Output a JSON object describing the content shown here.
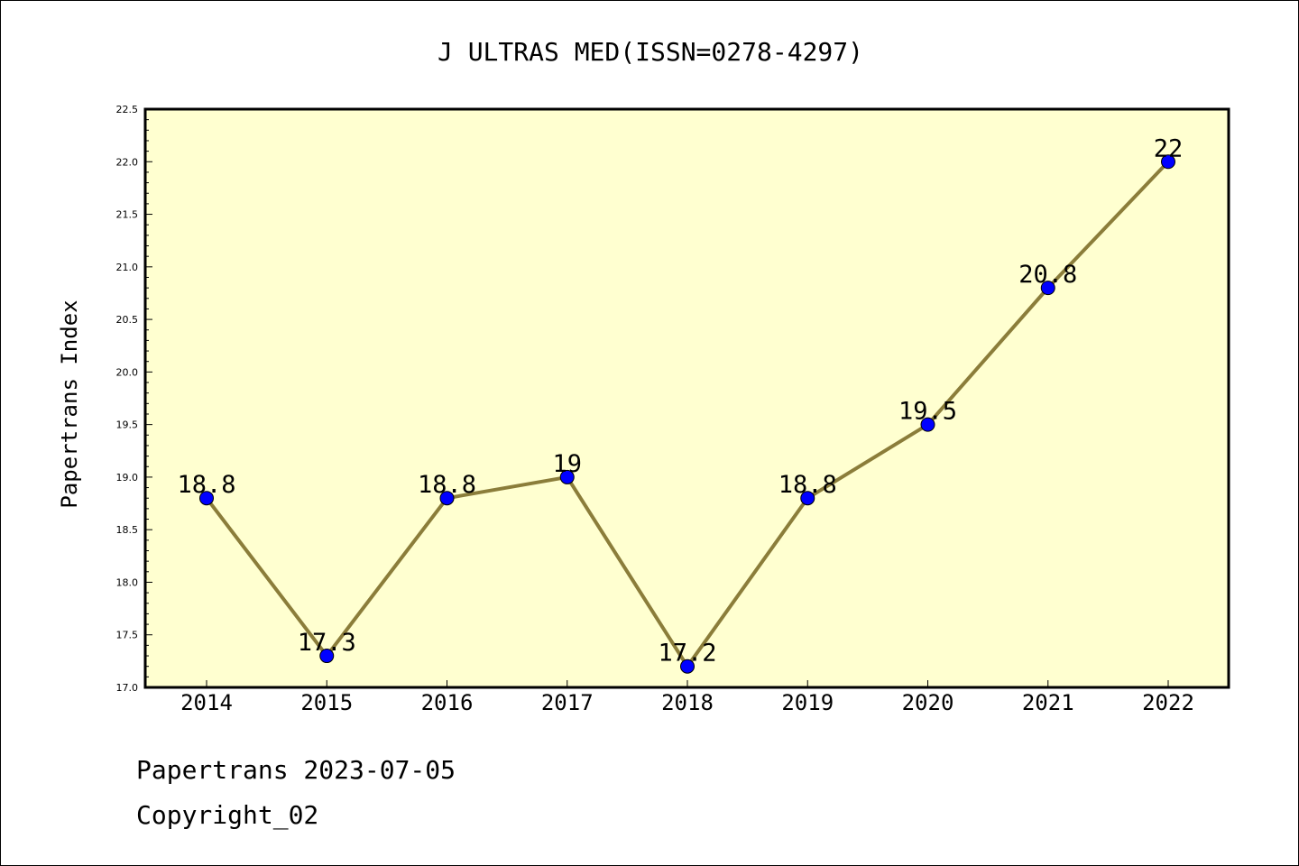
{
  "chart_data": {
    "type": "line",
    "title": "J ULTRAS MED(ISSN=0278-4297)",
    "xlabel": "",
    "ylabel": "Papertrans Index",
    "categories": [
      "2014",
      "2015",
      "2016",
      "2017",
      "2018",
      "2019",
      "2020",
      "2021",
      "2022"
    ],
    "series": [
      {
        "values": [
          18.8,
          17.3,
          18.8,
          19.0,
          17.2,
          18.8,
          19.5,
          20.8,
          22.0
        ],
        "labels": [
          "18.8",
          "17.3",
          "18.8",
          "19",
          "17.2",
          "18.8",
          "19.5",
          "20.8",
          "22"
        ]
      }
    ],
    "ylim": [
      17.0,
      22.5
    ],
    "yticks": [
      "17.0",
      "17.5",
      "18.0",
      "18.5",
      "19.0",
      "19.5",
      "20.0",
      "20.5",
      "21.0",
      "21.5",
      "22.0",
      "22.5"
    ],
    "grid": false,
    "legend": "none",
    "colors": {
      "plot_background": "#ffffd0",
      "line": "#8b7d3a",
      "marker": "#0000ff"
    }
  },
  "footer": {
    "line1": "Papertrans 2023-07-05",
    "line2": "Copyright_02"
  }
}
